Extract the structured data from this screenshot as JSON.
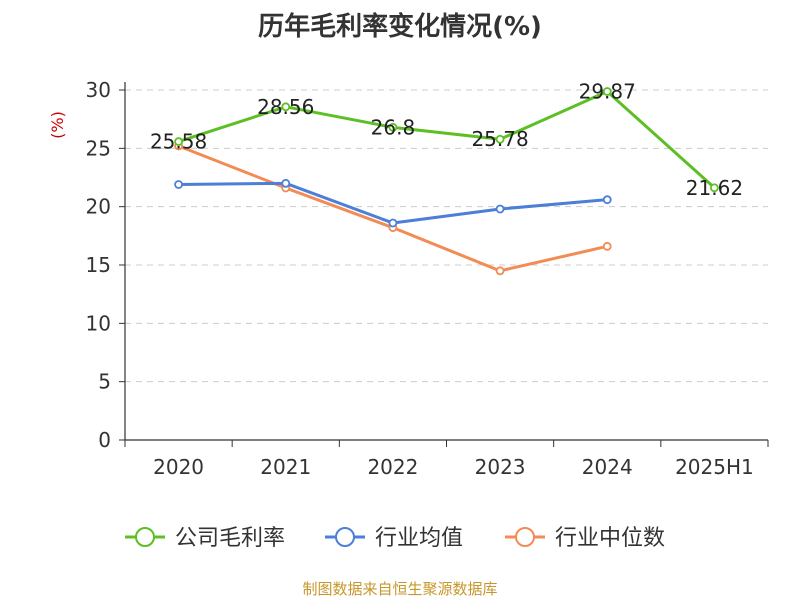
{
  "chart_data": {
    "type": "line",
    "title": "历年毛利率变化情况(%)",
    "ylabel": "(%)",
    "xlabel": "",
    "categories": [
      "2020",
      "2021",
      "2022",
      "2023",
      "2024",
      "2025H1"
    ],
    "ylim": [
      0,
      30
    ],
    "yticks": [
      0,
      5,
      10,
      15,
      20,
      25,
      30
    ],
    "grid": true,
    "legend_position": "bottom",
    "series": [
      {
        "name": "公司毛利率",
        "color": "#5cbf24",
        "values": [
          25.58,
          28.56,
          26.8,
          25.78,
          29.87,
          21.62
        ],
        "labels": [
          "25.58",
          "28.56",
          "26.8",
          "25.78",
          "29.87",
          "21.62"
        ]
      },
      {
        "name": "行业均值",
        "color": "#4b7fd8",
        "values": [
          21.9,
          22.0,
          18.6,
          19.8,
          20.6,
          null
        ]
      },
      {
        "name": "行业中位数",
        "color": "#f28b54",
        "values": [
          25.2,
          21.6,
          18.2,
          14.5,
          16.6,
          null
        ]
      }
    ]
  },
  "footer": {
    "source": "制图数据来自恒生聚源数据库"
  }
}
